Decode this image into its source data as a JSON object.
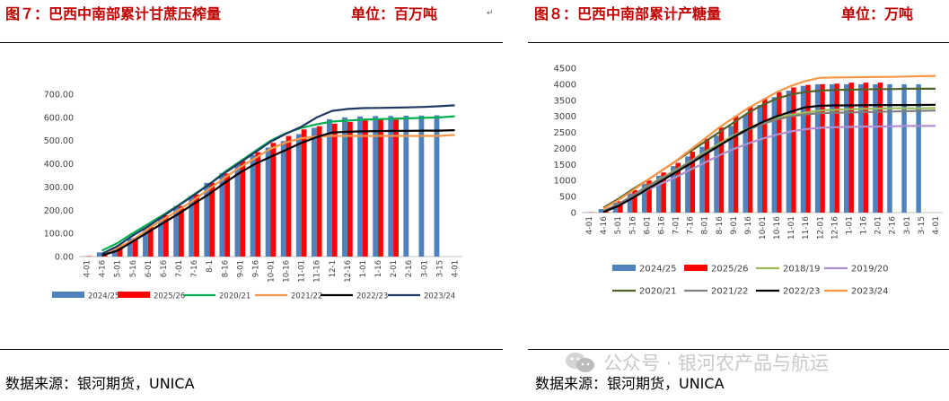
{
  "page": {
    "left_title": "图７：巴西中南部累计甘蔗压榨量",
    "left_unit": "单位：百万吨",
    "right_title": "图８：巴西中南部累计产糖量",
    "right_unit": "单位：万吨",
    "left_source": "数据来源：银河期货，UNICA",
    "right_source": "数据来源：银河期货，UNICA",
    "watermark": "公众号 · 银河农产品与航运",
    "logo_icon": "wechat-logo-icon"
  },
  "chart_data": [
    {
      "type": "bar",
      "title": "",
      "xlabel": "",
      "ylabel": "",
      "ylim": [
        0,
        700
      ],
      "yticks": [
        "0.00",
        "100.00",
        "200.00",
        "300.00",
        "400.00",
        "500.00",
        "600.00",
        "700.00"
      ],
      "grid": false,
      "legend_position": "bottom",
      "categories": [
        "4-01",
        "4-16",
        "5-01",
        "5-16",
        "6-01",
        "6-16",
        "7-01",
        "7-16",
        "8-1",
        "8-16",
        "9-01",
        "9-16",
        "10-01",
        "10-16",
        "11-01",
        "11-16",
        "12-1",
        "12-16",
        "1-01",
        "1-16",
        "2-01",
        "2-16",
        "3-01",
        "3-15",
        "4-01"
      ],
      "series": [
        {
          "name": "2024/25",
          "kind": "bar",
          "color": "#4f81bd",
          "values": [
            1,
            18,
            40,
            78,
            120,
            170,
            218,
            262,
            318,
            360,
            400,
            438,
            470,
            498,
            528,
            555,
            592,
            600,
            604,
            606,
            606,
            607,
            608,
            609,
            null
          ]
        },
        {
          "name": "2025/26",
          "kind": "bar",
          "color": "#ff0000",
          "values": [
            2,
            16,
            42,
            80,
            128,
            178,
            218,
            268,
            318,
            358,
            412,
            450,
            490,
            520,
            548,
            562,
            573,
            580,
            587,
            590,
            590,
            null,
            null,
            null,
            null
          ]
        },
        {
          "name": "2020/21",
          "kind": "line",
          "color": "#00b050",
          "values": [
            null,
            26,
            58,
            100,
            140,
            180,
            222,
            268,
            312,
            365,
            410,
            455,
            500,
            532,
            555,
            570,
            582,
            586,
            590,
            592,
            594,
            596,
            598,
            600,
            605
          ]
        },
        {
          "name": "2021/22",
          "kind": "line",
          "color": "#f79646",
          "values": [
            null,
            10,
            38,
            70,
            120,
            160,
            200,
            245,
            292,
            340,
            385,
            425,
            465,
            492,
            510,
            518,
            520,
            520,
            520,
            520,
            520,
            520,
            520,
            520,
            525
          ]
        },
        {
          "name": "2022/23",
          "kind": "line",
          "color": "#000000",
          "values": [
            null,
            5,
            25,
            65,
            105,
            145,
            185,
            228,
            270,
            318,
            362,
            400,
            430,
            460,
            490,
            515,
            535,
            538,
            540,
            541,
            542,
            542,
            543,
            543,
            545
          ]
        },
        {
          "name": "2023/24",
          "kind": "line",
          "color": "#1f3864",
          "values": [
            null,
            12,
            45,
            90,
            130,
            175,
            220,
            265,
            312,
            360,
            405,
            450,
            495,
            530,
            560,
            600,
            628,
            636,
            640,
            641,
            642,
            643,
            645,
            648,
            652
          ]
        }
      ]
    },
    {
      "type": "bar",
      "title": "",
      "xlabel": "",
      "ylabel": "",
      "ylim": [
        0,
        4500
      ],
      "yticks": [
        "0",
        "500",
        "1000",
        "1500",
        "2000",
        "2500",
        "3000",
        "3500",
        "4000",
        "4500"
      ],
      "grid": false,
      "legend_position": "bottom",
      "categories": [
        "4-01",
        "4-16",
        "5-01",
        "5-16",
        "6-01",
        "6-16",
        "7-01",
        "7-16",
        "8-01",
        "8-16",
        "9-01",
        "9-16",
        "10-01",
        "10-16",
        "11-01",
        "11-16",
        "12-01",
        "12-16",
        "1-01",
        "1-16",
        "2-01",
        "2-16",
        "3-01",
        "3-15",
        "4-01"
      ],
      "series": [
        {
          "name": "2024/25",
          "kind": "bar",
          "color": "#4f81bd",
          "values": [
            10,
            110,
            320,
            600,
            900,
            1150,
            1450,
            1750,
            2050,
            2400,
            2700,
            3050,
            3350,
            3600,
            3800,
            3950,
            4000,
            4000,
            4000,
            4000,
            4000,
            4000,
            4000,
            4000,
            null
          ]
        },
        {
          "name": "2025/26",
          "kind": "bar",
          "color": "#ff0000",
          "values": [
            10,
            90,
            350,
            700,
            1000,
            1250,
            1550,
            1900,
            2300,
            2650,
            3000,
            3300,
            3550,
            3750,
            3900,
            3980,
            4000,
            4020,
            4050,
            4050,
            4050,
            null,
            null,
            null,
            null
          ]
        },
        {
          "name": "2018/19",
          "kind": "line",
          "color": "#9bbb59",
          "values": [
            null,
            60,
            250,
            530,
            820,
            1080,
            1330,
            1600,
            1880,
            2150,
            2400,
            2620,
            2800,
            2950,
            3050,
            3120,
            3180,
            3200,
            3220,
            3230,
            3240,
            3250,
            3250,
            3250,
            3260
          ]
        },
        {
          "name": "2019/20",
          "kind": "line",
          "color": "#b08fd0",
          "values": [
            null,
            60,
            250,
            450,
            700,
            900,
            1100,
            1330,
            1550,
            1780,
            1980,
            2150,
            2300,
            2430,
            2530,
            2600,
            2640,
            2660,
            2670,
            2680,
            2680,
            2690,
            2700,
            2700,
            2700
          ]
        },
        {
          "name": "2020/21",
          "kind": "line",
          "color": "#4f6228",
          "values": [
            null,
            150,
            420,
            720,
            1000,
            1300,
            1600,
            1900,
            2200,
            2500,
            2800,
            3100,
            3350,
            3550,
            3680,
            3760,
            3800,
            3820,
            3830,
            3840,
            3850,
            3850,
            3860,
            3860,
            3860
          ]
        },
        {
          "name": "2021/22",
          "kind": "line",
          "color": "#7f7f7f",
          "values": [
            null,
            50,
            250,
            530,
            800,
            1050,
            1300,
            1580,
            1850,
            2100,
            2350,
            2580,
            2760,
            2900,
            3000,
            3060,
            3100,
            3110,
            3120,
            3130,
            3140,
            3150,
            3160,
            3170,
            3180
          ]
        },
        {
          "name": "2022/23",
          "kind": "line",
          "color": "#000000",
          "values": [
            null,
            20,
            200,
            450,
            720,
            980,
            1250,
            1520,
            1800,
            2080,
            2350,
            2600,
            2820,
            3000,
            3150,
            3280,
            3330,
            3340,
            3340,
            3345,
            3350,
            3350,
            3350,
            3355,
            3360
          ]
        },
        {
          "name": "2023/24",
          "kind": "line",
          "color": "#f79646",
          "values": [
            null,
            120,
            380,
            680,
            1000,
            1300,
            1600,
            1950,
            2300,
            2650,
            2950,
            3250,
            3500,
            3750,
            3950,
            4100,
            4200,
            4210,
            4215,
            4220,
            4225,
            4230,
            4240,
            4250,
            4260
          ]
        }
      ]
    }
  ]
}
